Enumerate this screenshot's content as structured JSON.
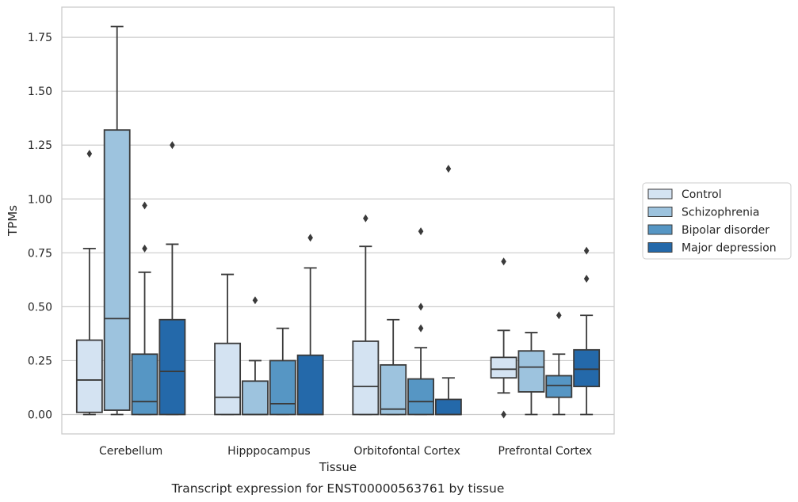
{
  "chart_data": {
    "type": "box",
    "title": "",
    "caption": "Transcript expression for ENST00000563761 by tissue",
    "xlabel": "Tissue",
    "ylabel": "TPMs",
    "ylim": [
      -0.09,
      1.89
    ],
    "yticks": [
      "0.00",
      "0.25",
      "0.50",
      "0.75",
      "1.00",
      "1.25",
      "1.50",
      "1.75"
    ],
    "grid": "horizontal",
    "legend_position": "right",
    "categories": [
      "Cerebellum",
      "Hipppocampus",
      "Orbitofontal Cortex",
      "Prefrontal Cortex"
    ],
    "series": [
      {
        "name": "Control",
        "color": "#d4e3f2",
        "boxes": [
          {
            "whisker_low": 0.0,
            "q1": 0.01,
            "median": 0.16,
            "q3": 0.345,
            "whisker_high": 0.77,
            "outliers": [
              1.21
            ]
          },
          {
            "whisker_low": 0.0,
            "q1": 0.0,
            "median": 0.08,
            "q3": 0.33,
            "whisker_high": 0.65,
            "outliers": []
          },
          {
            "whisker_low": 0.0,
            "q1": 0.0,
            "median": 0.13,
            "q3": 0.34,
            "whisker_high": 0.78,
            "outliers": [
              0.91
            ]
          },
          {
            "whisker_low": 0.1,
            "q1": 0.17,
            "median": 0.21,
            "q3": 0.265,
            "whisker_high": 0.39,
            "outliers": [
              0.0,
              0.71
            ]
          }
        ]
      },
      {
        "name": "Schizophrenia",
        "color": "#9dc3de",
        "boxes": [
          {
            "whisker_low": 0.0,
            "q1": 0.02,
            "median": 0.445,
            "q3": 1.32,
            "whisker_high": 1.8,
            "outliers": []
          },
          {
            "whisker_low": 0.0,
            "q1": 0.0,
            "median": 0.0,
            "q3": 0.155,
            "whisker_high": 0.25,
            "outliers": [
              0.53
            ]
          },
          {
            "whisker_low": 0.0,
            "q1": 0.0,
            "median": 0.025,
            "q3": 0.23,
            "whisker_high": 0.44,
            "outliers": []
          },
          {
            "whisker_low": 0.0,
            "q1": 0.105,
            "median": 0.22,
            "q3": 0.295,
            "whisker_high": 0.38,
            "outliers": []
          }
        ]
      },
      {
        "name": "Bipolar disorder",
        "color": "#5696c4",
        "boxes": [
          {
            "whisker_low": 0.0,
            "q1": 0.0,
            "median": 0.06,
            "q3": 0.28,
            "whisker_high": 0.66,
            "outliers": [
              0.77,
              0.97
            ]
          },
          {
            "whisker_low": 0.0,
            "q1": 0.0,
            "median": 0.05,
            "q3": 0.25,
            "whisker_high": 0.4,
            "outliers": []
          },
          {
            "whisker_low": 0.0,
            "q1": 0.0,
            "median": 0.06,
            "q3": 0.165,
            "whisker_high": 0.31,
            "outliers": [
              0.4,
              0.5,
              0.85
            ]
          },
          {
            "whisker_low": 0.0,
            "q1": 0.08,
            "median": 0.135,
            "q3": 0.18,
            "whisker_high": 0.28,
            "outliers": [
              0.46
            ]
          }
        ]
      },
      {
        "name": "Major depression",
        "color": "#2469aa",
        "boxes": [
          {
            "whisker_low": 0.0,
            "q1": 0.0,
            "median": 0.2,
            "q3": 0.44,
            "whisker_high": 0.79,
            "outliers": [
              1.25
            ]
          },
          {
            "whisker_low": 0.0,
            "q1": 0.0,
            "median": 0.0,
            "q3": 0.275,
            "whisker_high": 0.68,
            "outliers": [
              0.82
            ]
          },
          {
            "whisker_low": 0.0,
            "q1": 0.0,
            "median": 0.0,
            "q3": 0.07,
            "whisker_high": 0.17,
            "outliers": [
              1.14
            ]
          },
          {
            "whisker_low": 0.0,
            "q1": 0.13,
            "median": 0.21,
            "q3": 0.3,
            "whisker_high": 0.46,
            "outliers": [
              0.63,
              0.76
            ]
          }
        ]
      }
    ]
  }
}
